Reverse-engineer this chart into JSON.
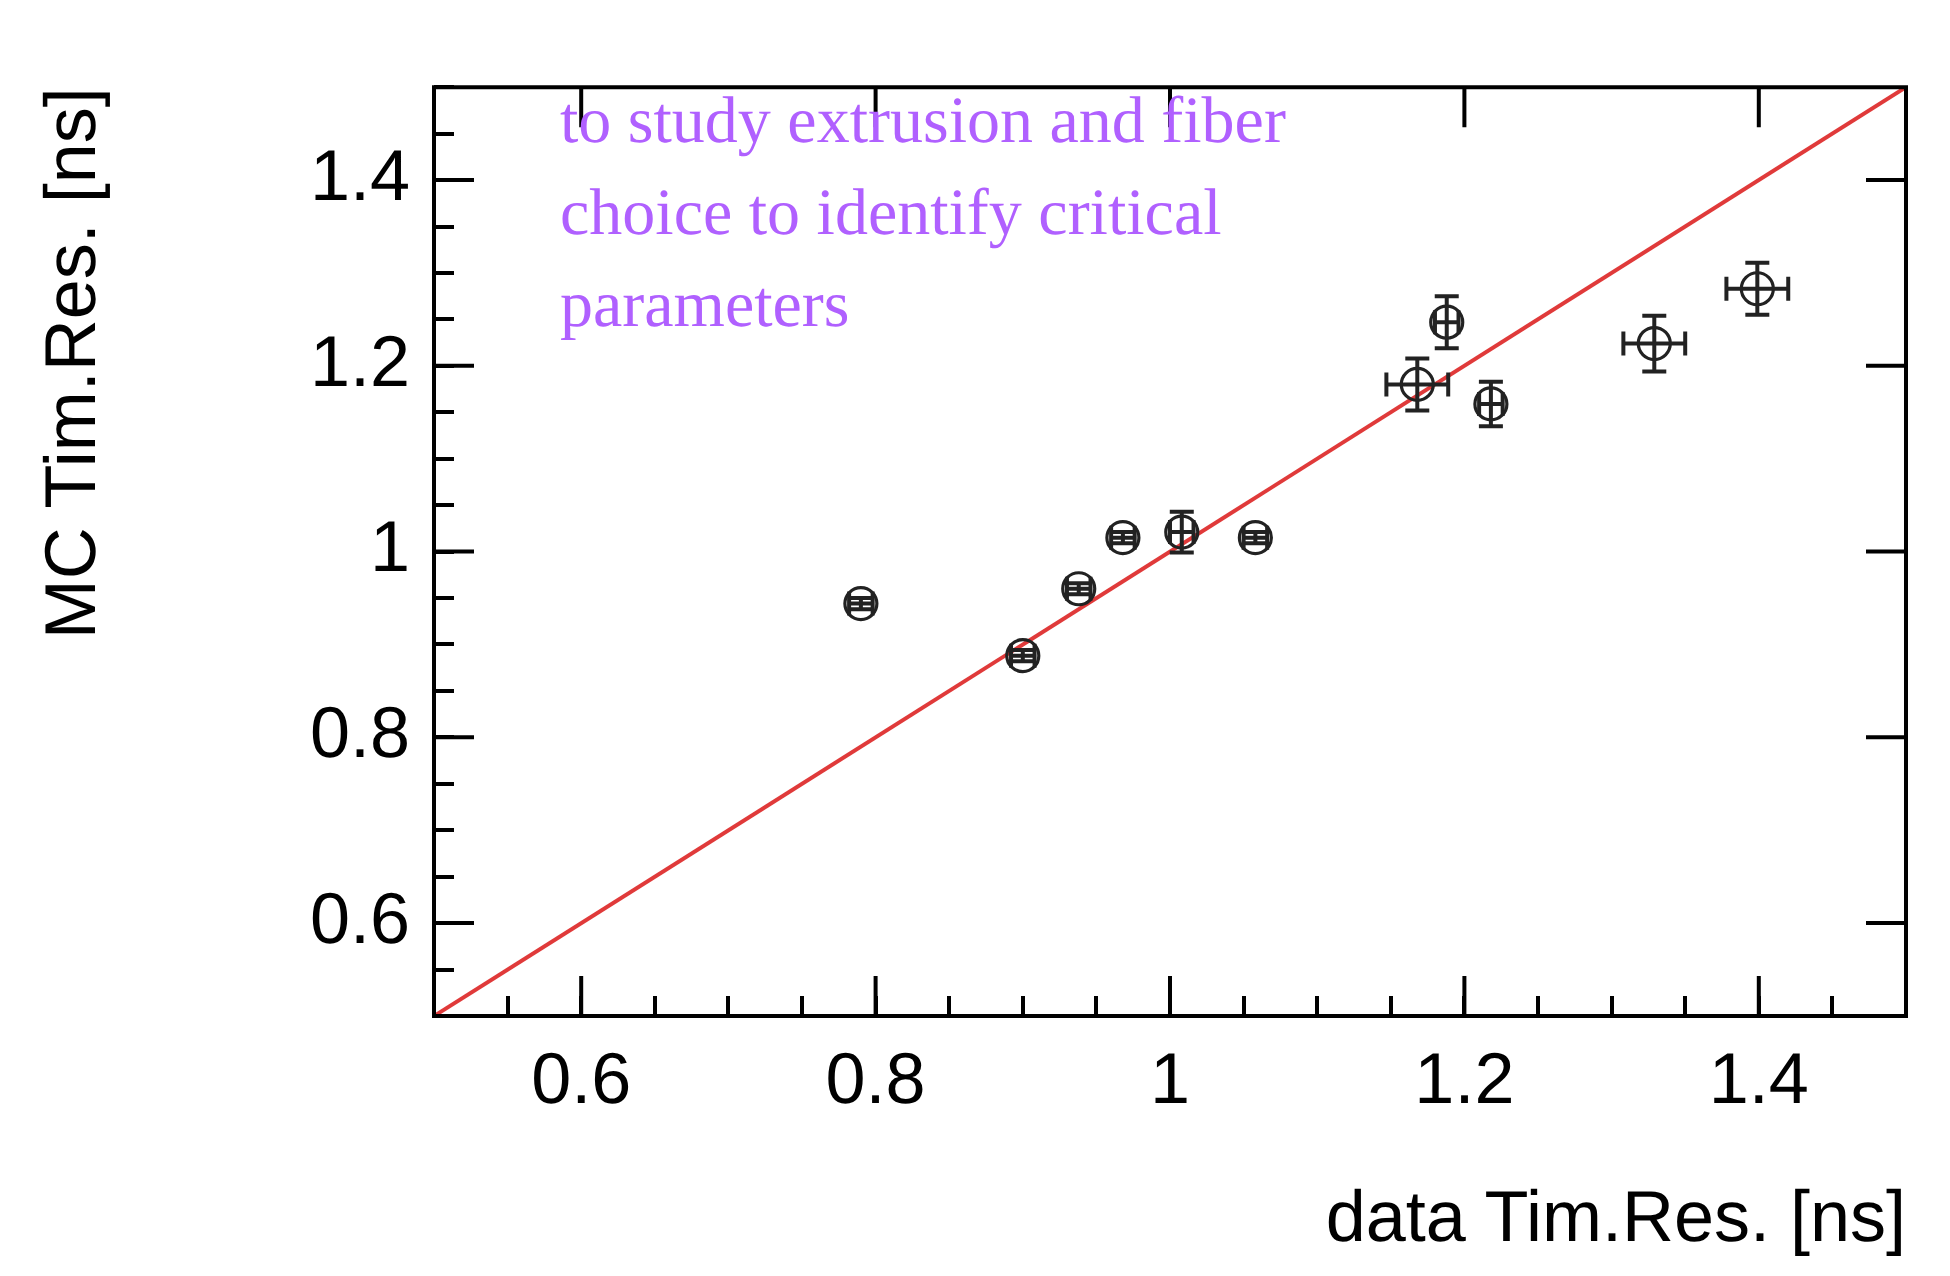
{
  "chart_data": {
    "type": "scatter",
    "xlabel": "data Tim.Res. [ns]",
    "ylabel": "MC Tim.Res. [ns]",
    "annotations": [
      "to study extrusion and fiber choice to identify critical parameters"
    ],
    "x": [
      0.79,
      0.9,
      0.938,
      0.968,
      1.008,
      1.058,
      1.168,
      1.188,
      1.218,
      1.329,
      1.399
    ],
    "series": [
      {
        "type": "scatter",
        "marker": "circle",
        "color": "#222222",
        "values": [
          0.944,
          0.888,
          0.96,
          1.015,
          1.021,
          1.015,
          1.18,
          1.247,
          1.159,
          1.224,
          1.283
        ],
        "errors": [
          0.006,
          0.006,
          0.006,
          0.006,
          0.022,
          0.006,
          0.028,
          0.028,
          0.024,
          0.03,
          0.028
        ],
        "xerrors": [
          0.008,
          0.008,
          0.008,
          0.008,
          0.008,
          0.008,
          0.021,
          0.008,
          0.008,
          0.021,
          0.021
        ]
      },
      {
        "type": "line",
        "marker": "none",
        "color": "#e03a3a",
        "x": [
          0.5,
          1.5
        ],
        "values": [
          0.5,
          1.5
        ]
      }
    ],
    "xlim": [
      0.5,
      1.5
    ],
    "ylim": [
      0.5,
      1.5
    ],
    "xticks": [
      {
        "value": 0.5,
        "label": null
      },
      {
        "value": 0.55,
        "label": null
      },
      0.6,
      {
        "value": 0.65,
        "label": null
      },
      {
        "value": 0.7,
        "label": null
      },
      {
        "value": 0.75,
        "label": null
      },
      0.8,
      {
        "value": 0.85,
        "label": null
      },
      {
        "value": 0.9,
        "label": null
      },
      {
        "value": 0.95,
        "label": null
      },
      1,
      {
        "value": 1.05,
        "label": null
      },
      {
        "value": 1.1,
        "label": null
      },
      {
        "value": 1.15,
        "label": null
      },
      1.2,
      {
        "value": 1.25,
        "label": null
      },
      {
        "value": 1.3,
        "label": null
      },
      {
        "value": 1.35,
        "label": null
      },
      1.4,
      {
        "value": 1.45,
        "label": null
      },
      {
        "value": 1.5,
        "label": null
      }
    ],
    "yticks": [
      {
        "value": 0.5,
        "label": null
      },
      {
        "value": 0.55,
        "label": null
      },
      0.6,
      {
        "value": 0.65,
        "label": null
      },
      {
        "value": 0.7,
        "label": null
      },
      {
        "value": 0.75,
        "label": null
      },
      0.8,
      {
        "value": 0.85,
        "label": null
      },
      {
        "value": 0.9,
        "label": null
      },
      {
        "value": 0.95,
        "label": null
      },
      1,
      {
        "value": 1.05,
        "label": null
      },
      {
        "value": 1.1,
        "label": null
      },
      {
        "value": 1.15,
        "label": null
      },
      1.2,
      {
        "value": 1.25,
        "label": null
      },
      {
        "value": 1.3,
        "label": null
      },
      {
        "value": 1.35,
        "label": null
      },
      1.4,
      {
        "value": 1.45,
        "label": null
      },
      {
        "value": 1.5,
        "label": null
      }
    ],
    "grid": false,
    "legend": false,
    "line_style": "solid"
  }
}
